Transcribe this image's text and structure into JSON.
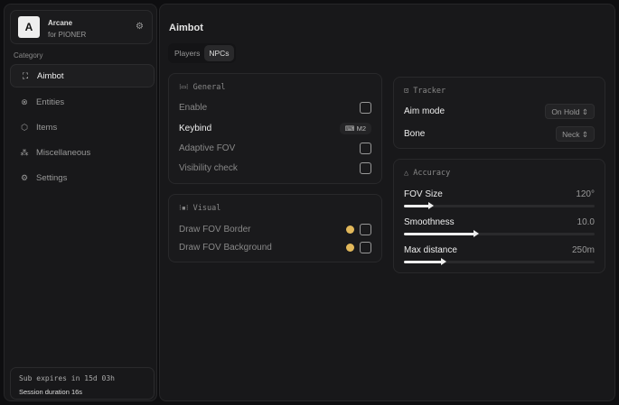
{
  "brand": {
    "logo": "A",
    "name": "Arcane",
    "subtitle": "for PIONER"
  },
  "sidebar": {
    "category_label": "Category",
    "items": [
      {
        "label": "Aimbot",
        "icon": "crosshair-icon",
        "active": true
      },
      {
        "label": "Entities",
        "icon": "entities-icon"
      },
      {
        "label": "Items",
        "icon": "cube-icon"
      },
      {
        "label": "Miscellaneous",
        "icon": "grid-icon"
      },
      {
        "label": "Settings",
        "icon": "gear-icon"
      }
    ]
  },
  "footer": {
    "subscription": "Sub expires in 15d 03h",
    "session": "Session duration 16s"
  },
  "main": {
    "title": "Aimbot",
    "tabs": [
      {
        "label": "Players"
      },
      {
        "label": "NPCs",
        "active": true
      }
    ],
    "general": {
      "title": "General",
      "enable": "Enable",
      "keybind": "Keybind",
      "keybind_value": "M2",
      "adaptive_fov": "Adaptive FOV",
      "visibility_check": "Visibility check"
    },
    "visual": {
      "title": "Visual",
      "draw_border": "Draw FOV Border",
      "draw_background": "Draw FOV Background",
      "color": "#e2b85a"
    },
    "tracker": {
      "title": "Tracker",
      "aim_mode": "Aim mode",
      "aim_mode_value": "On Hold",
      "bone": "Bone",
      "bone_value": "Neck"
    },
    "accuracy": {
      "title": "Accuracy",
      "sliders": [
        {
          "label": "FOV Size",
          "value": "120°",
          "fraction": 0.14
        },
        {
          "label": "Smoothness",
          "value": "10.0",
          "fraction": 0.38
        },
        {
          "label": "Max distance",
          "value": "250m",
          "fraction": 0.21
        }
      ]
    }
  }
}
